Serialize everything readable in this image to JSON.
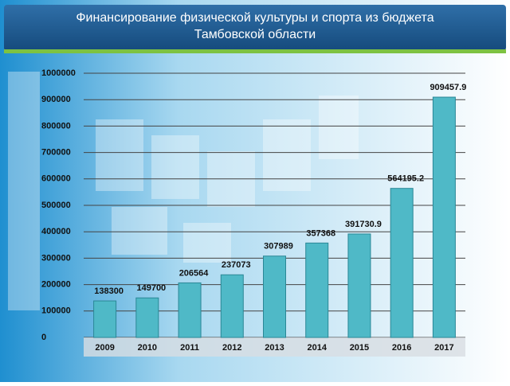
{
  "chart_data": {
    "type": "bar",
    "title": [
      "Финансирование физической культуры и спорта из бюджета",
      "Тамбовской области"
    ],
    "categories": [
      "2009",
      "2010",
      "2011",
      "2012",
      "2013",
      "2014",
      "2015",
      "2016",
      "2017"
    ],
    "values": [
      138300,
      149700,
      206564,
      237073,
      307989,
      357368,
      391730.9,
      564195.2,
      909457.9
    ],
    "color": "#4fb9c7",
    "ylim": [
      0,
      1000000
    ],
    "yticks": [
      0,
      100000,
      200000,
      300000,
      400000,
      500000,
      600000,
      700000,
      800000,
      900000,
      1000000
    ],
    "grid": true
  }
}
